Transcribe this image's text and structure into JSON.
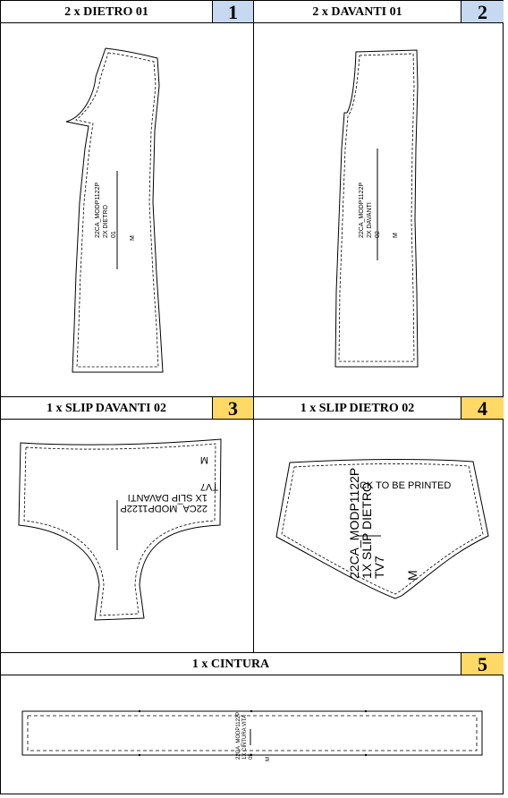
{
  "panels": [
    {
      "title": "2 x DIETRO 01",
      "number": "1",
      "color": "#c6d9f0",
      "labels": [
        "22CA_MODP1122P",
        "2X DIETRO",
        "01",
        "M"
      ]
    },
    {
      "title": "2 x DAVANTI 01",
      "number": "2",
      "color": "#c6d9f0",
      "labels": [
        "22CA_MODP1122P",
        "2X DAVANTI",
        "02",
        "M"
      ]
    },
    {
      "title": "1 x SLIP DAVANTI 02",
      "number": "3",
      "color": "#ffd966",
      "labels": [
        "22CA_MODP1122P",
        "1X SLIP DAVANTI",
        "TV7",
        "M"
      ]
    },
    {
      "title": "1 x SLIP DIETRO 02",
      "number": "4",
      "color": "#ffd966",
      "labels": [
        "22CA_MODP1122P",
        "1X SLIP DIETRO",
        "TV7",
        "M",
        "CK TO BE PRINTED"
      ]
    },
    {
      "title": "1 x CINTURA",
      "number": "5",
      "color": "#ffd966",
      "labels": [
        "22CA_MODP1122P",
        "1X CINTURA VITA",
        "05",
        "M"
      ]
    }
  ]
}
